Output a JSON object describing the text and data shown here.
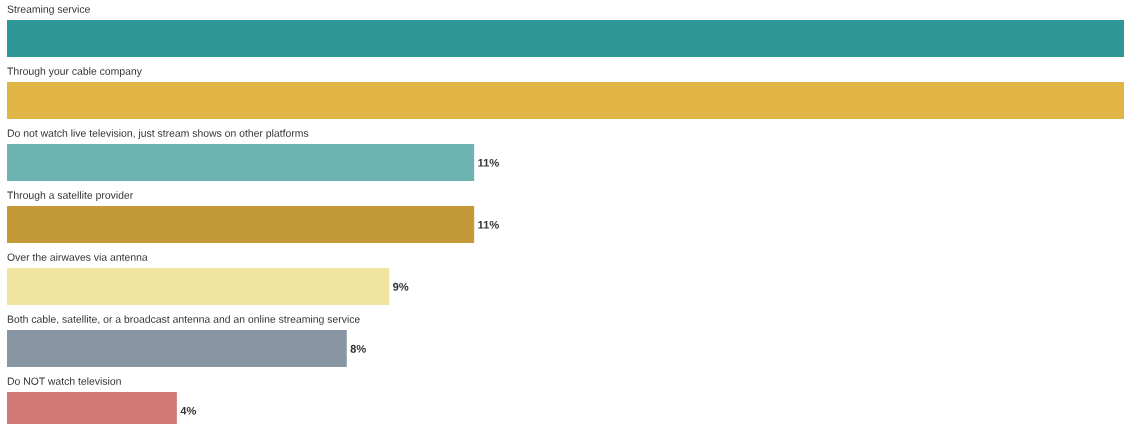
{
  "chart_data": {
    "type": "bar",
    "orientation": "horizontal",
    "categories": [
      "Streaming service",
      "Through your cable company",
      "Do not watch live television, just stream shows on other platforms",
      "Through a satellite provider",
      "Over the airwaves via antenna",
      "Both cable, satellite, or a broadcast antenna and an online streaming service",
      "Do NOT watch television"
    ],
    "values": [
      26.3,
      26.3,
      11,
      11,
      9,
      8,
      4
    ],
    "value_labels": [
      null,
      null,
      "11%",
      "11%",
      "9%",
      "8%",
      "4%"
    ],
    "colors": [
      "#2e9896",
      "#e0b546",
      "#6db3b1",
      "#c49a38",
      "#f1e4a0",
      "#8896a4",
      "#d27876"
    ],
    "xlim": [
      0,
      26.3
    ]
  }
}
